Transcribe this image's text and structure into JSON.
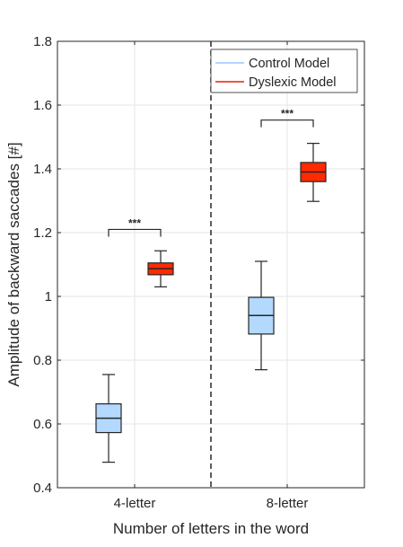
{
  "chart_data": {
    "type": "box",
    "xlabel": "Number of letters in the word",
    "ylabel": "Amplitude of backward saccades [#]",
    "categories": [
      "4-letter",
      "8-letter"
    ],
    "ylim": [
      0.4,
      1.8
    ],
    "yticks": [
      "0.4",
      "0.6",
      "0.8",
      "1",
      "1.2",
      "1.4",
      "1.6",
      "1.8"
    ],
    "ytick_values": [
      0.4,
      0.6,
      0.8,
      1.0,
      1.2,
      1.4,
      1.6,
      1.8
    ],
    "grid": true,
    "legend_position": "top-right",
    "series": [
      {
        "name": "Control Model",
        "fill": "#b3d9ff",
        "line": "#99c7ff",
        "boxes": [
          {
            "category": "4-letter",
            "whisker_low": 0.48,
            "q1": 0.573,
            "median": 0.618,
            "q3": 0.663,
            "whisker_high": 0.755
          },
          {
            "category": "8-letter",
            "whisker_low": 0.77,
            "q1": 0.882,
            "median": 0.94,
            "q3": 0.997,
            "whisker_high": 1.11
          }
        ]
      },
      {
        "name": "Dyslexic Model",
        "fill": "#ff2a00",
        "line": "#e62000",
        "boxes": [
          {
            "category": "4-letter",
            "whisker_low": 1.03,
            "q1": 1.068,
            "median": 1.087,
            "q3": 1.105,
            "whisker_high": 1.143
          },
          {
            "category": "8-letter",
            "whisker_low": 1.298,
            "q1": 1.36,
            "median": 1.39,
            "q3": 1.42,
            "whisker_high": 1.48
          }
        ]
      }
    ],
    "annotations": [
      {
        "category": "4-letter",
        "text": "***",
        "y": 1.21
      },
      {
        "category": "8-letter",
        "text": "***",
        "y": 1.553
      }
    ],
    "separator": {
      "style": "dashed",
      "between": [
        "4-letter",
        "8-letter"
      ]
    }
  }
}
